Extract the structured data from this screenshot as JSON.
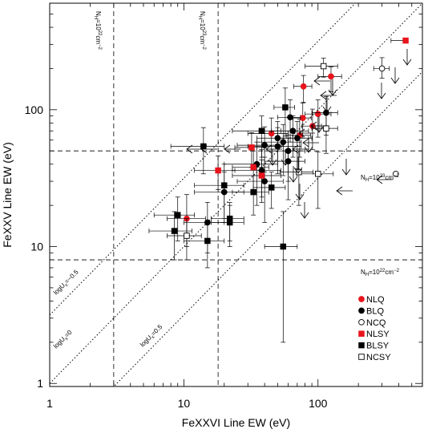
{
  "chart_data": {
    "type": "scatter",
    "xscale": "log",
    "yscale": "log",
    "xlim": [
      1,
      600
    ],
    "ylim": [
      0.95,
      600
    ],
    "xlabel": "FeXXVI Line EW (eV)",
    "ylabel": "FeXXV Line EW (eV)",
    "xticks": [
      1,
      10,
      100
    ],
    "yticks": [
      1,
      10,
      100
    ],
    "xtick_labels": [
      "1",
      "10",
      "100"
    ],
    "ytick_labels": [
      "1",
      "10",
      "100"
    ],
    "legend_position": "lower-right",
    "grid": false,
    "reference_lines": {
      "vertical": [
        {
          "x": 3,
          "style": "dashed",
          "label": "N_H=10^22 cm^-2"
        },
        {
          "x": 18,
          "style": "dashed",
          "label": "N_H=10^23 cm^-2"
        }
      ],
      "horizontal": [
        {
          "y": 50,
          "style": "dashed",
          "label": "N_H=10^23 cm^-2"
        },
        {
          "y": 8,
          "style": "dashed",
          "label": "N_H=10^22 cm^-2"
        }
      ],
      "diagonal": [
        {
          "log_ratio": 0.5,
          "style": "dotted",
          "label": "logU_x=-0.5"
        },
        {
          "log_ratio": 0.0,
          "style": "dotted",
          "label": "logU_x=0"
        },
        {
          "log_ratio": -0.5,
          "style": "dotted",
          "label": "logU_x=0.5"
        }
      ]
    },
    "annotations": {
      "vline_22": "N<tspan font-size=\"6\" dy=\"2\">H</tspan><tspan dy=\"-2\">=10</tspan><tspan font-size=\"6\" dy=\"-3\">22</tspan><tspan dy=\"3\">cm</tspan><tspan font-size=\"6\" dy=\"-3\">−2</tspan>",
      "vline_23": "N<tspan font-size=\"6\" dy=\"2\">H</tspan><tspan dy=\"-2\">=10</tspan><tspan font-size=\"6\" dy=\"-3\">23</tspan><tspan dy=\"3\">cm</tspan><tspan font-size=\"6\" dy=\"-3\">−2</tspan>",
      "hline_23": "N<tspan font-size=\"6\" dy=\"2\">H</tspan><tspan dy=\"-2\">=10</tspan><tspan font-size=\"6\" dy=\"-3\">23</tspan><tspan dy=\"3\">cm</tspan><tspan font-size=\"6\" dy=\"-3\">−2</tspan>",
      "hline_22": "N<tspan font-size=\"6\" dy=\"2\">H</tspan><tspan dy=\"-2\">=10</tspan><tspan font-size=\"6\" dy=\"-3\">22</tspan><tspan dy=\"3\">cm</tspan><tspan font-size=\"6\" dy=\"-3\">−2</tspan>",
      "diag_m05": "logU<tspan font-size=\"6\" dy=\"2\">x</tspan><tspan dy=\"-2\">=−0.5</tspan>",
      "diag_0": "logU<tspan font-size=\"6\" dy=\"2\">x</tspan><tspan dy=\"-2\">=0</tspan>",
      "diag_p05": "logU<tspan font-size=\"6\" dy=\"2\">x</tspan><tspan dy=\"-2\">=0.5</tspan>"
    },
    "legend": [
      {
        "label": "NLQ",
        "marker": "circle",
        "filled": true,
        "color": "#e8141c"
      },
      {
        "label": "BLQ",
        "marker": "circle",
        "filled": true,
        "color": "#000000"
      },
      {
        "label": "NCQ",
        "marker": "circle",
        "filled": false,
        "color": "#000000"
      },
      {
        "label": "NLSY",
        "marker": "square",
        "filled": true,
        "color": "#e8141c"
      },
      {
        "label": "BLSY",
        "marker": "square",
        "filled": true,
        "color": "#000000"
      },
      {
        "label": "NCSY",
        "marker": "square",
        "filled": false,
        "color": "#000000"
      }
    ],
    "series": [
      {
        "name": "NLQ",
        "marker": "circle",
        "filled": true,
        "color": "#e8141c",
        "points": [
          {
            "x": 78,
            "y": 148,
            "xerr": [
              12,
              12
            ],
            "yerr": [
              35,
              30
            ]
          },
          {
            "x": 125,
            "y": 175,
            "xerr": [
              25,
              25
            ],
            "yerr": [
              40,
              30
            ]
          },
          {
            "x": 100,
            "y": 93,
            "xerr": [
              20,
              25
            ],
            "yerr": [
              30,
              25
            ]
          },
          {
            "x": 77,
            "y": 87,
            "xerr": [
              12,
              12
            ],
            "yerr": [
              25,
              25
            ]
          },
          {
            "x": 91,
            "y": 76,
            "xerr": [
              15,
              15
            ],
            "yerr": [
              25,
              25
            ]
          },
          {
            "x": 73,
            "y": 65,
            "xerr": [
              15,
              15
            ],
            "yerr": [
              20,
              20
            ]
          },
          {
            "x": 45,
            "y": 67,
            "xerr": [
              15,
              15
            ],
            "yerr": [
              25,
              20
            ]
          },
          {
            "x": 10.5,
            "y": 16,
            "xerr": [
              3,
              4
            ],
            "yerr": [
              6,
              8
            ]
          }
        ]
      },
      {
        "name": "BLQ",
        "marker": "circle",
        "filled": true,
        "color": "#000000",
        "points": [
          {
            "x": 115,
            "y": 95,
            "xerr": [
              25,
              25
            ],
            "yerr": [
              30,
              30
            ]
          },
          {
            "x": 70,
            "y": 62,
            "xerr": [
              20,
              20
            ],
            "yerr": [
              25,
              20
            ]
          },
          {
            "x": 65,
            "y": 70,
            "xerr": [
              20,
              20
            ],
            "yerr": [
              25,
              20
            ]
          },
          {
            "x": 55,
            "y": 58,
            "xerr": [
              20,
              20
            ],
            "yerr": [
              25,
              20
            ]
          },
          {
            "x": 60,
            "y": 50,
            "xerr": [
              20,
              20
            ],
            "yerr": [
              20,
              20
            ]
          },
          {
            "x": 62,
            "y": 88,
            "xerr": [
              12,
              12
            ],
            "yerr": [
              30,
              30
            ]
          },
          {
            "x": 50,
            "y": 54,
            "xerr": [
              20,
              25
            ],
            "yerr": [
              20,
              20
            ]
          },
          {
            "x": 60,
            "y": 42,
            "xerr": [
              20,
              20
            ],
            "yerr": [
              20,
              20
            ]
          },
          {
            "x": 40,
            "y": 55,
            "xerr": [
              15,
              15
            ],
            "yerr": [
              20,
              20
            ]
          },
          {
            "x": 35,
            "y": 40,
            "xerr": [
              15,
              15
            ],
            "yerr": [
              20,
              18
            ]
          },
          {
            "x": 38,
            "y": 36,
            "xerr": [
              15,
              15
            ],
            "yerr": [
              15,
              15
            ]
          },
          {
            "x": 20,
            "y": 25,
            "xerr": [
              8,
              8
            ],
            "yerr": [
              10,
              10
            ]
          },
          {
            "x": 15,
            "y": 15,
            "xerr": [
              5,
              5
            ],
            "yerr": [
              6,
              6
            ]
          },
          {
            "x": 40,
            "y": 30,
            "xerr": [
              15,
              15
            ],
            "yerr": [
              15,
              15
            ]
          },
          {
            "x": 50,
            "y": 62,
            "xerr": [
              15,
              15
            ],
            "yerr": [
              20,
              20
            ]
          }
        ]
      },
      {
        "name": "NCQ",
        "marker": "circle",
        "filled": false,
        "color": "#000000",
        "points": [
          {
            "x": 300,
            "y": 200,
            "xerr": [
              40,
              40
            ],
            "yerr": [
              30,
              40
            ]
          },
          {
            "x": 380,
            "y": 34,
            "xerr": [
              0,
              0
            ],
            "yerr": [
              0,
              0
            ]
          }
        ]
      },
      {
        "name": "NLSY",
        "marker": "square",
        "filled": true,
        "color": "#e8141c",
        "points": [
          {
            "x": 450,
            "y": 320,
            "xerr": [
              100,
              0
            ],
            "yerr": [
              0,
              0
            ]
          },
          {
            "x": 38,
            "y": 33,
            "xerr": [
              15,
              15
            ],
            "yerr": [
              10,
              10
            ]
          },
          {
            "x": 33,
            "y": 38,
            "xerr": [
              10,
              10
            ],
            "yerr": [
              12,
              12
            ]
          },
          {
            "x": 18,
            "y": 36,
            "xerr": [
              6,
              6
            ],
            "yerr": [
              10,
              10
            ]
          },
          {
            "x": 32,
            "y": 53,
            "xerr": [
              8,
              8
            ],
            "yerr": [
              15,
              15
            ]
          }
        ]
      },
      {
        "name": "BLSY",
        "marker": "square",
        "filled": true,
        "color": "#000000",
        "points": [
          {
            "x": 57,
            "y": 104,
            "xerr": [
              10,
              10
            ],
            "yerr": [
              40,
              40
            ]
          },
          {
            "x": 38,
            "y": 70,
            "xerr": [
              15,
              15
            ],
            "yerr": [
              25,
              20
            ]
          },
          {
            "x": 14,
            "y": 54,
            "xerr": [
              6,
              6
            ],
            "yerr": [
              20,
              20
            ]
          },
          {
            "x": 20,
            "y": 28,
            "xerr": [
              8,
              8
            ],
            "yerr": [
              12,
              12
            ]
          },
          {
            "x": 9,
            "y": 17,
            "xerr": [
              3,
              3
            ],
            "yerr": [
              6,
              6
            ]
          },
          {
            "x": 8.5,
            "y": 13,
            "xerr": [
              3,
              3
            ],
            "yerr": [
              5,
              5
            ]
          },
          {
            "x": 22,
            "y": 16,
            "xerr": [
              6,
              6
            ],
            "yerr": [
              5,
              5
            ]
          },
          {
            "x": 22,
            "y": 15,
            "xerr": [
              6,
              6
            ],
            "yerr": [
              5,
              5
            ]
          },
          {
            "x": 15,
            "y": 11,
            "xerr": [
              5,
              5
            ],
            "yerr": [
              4,
              4
            ]
          },
          {
            "x": 33,
            "y": 25,
            "xerr": [
              10,
              10
            ],
            "yerr": [
              8,
              8
            ]
          },
          {
            "x": 45,
            "y": 27,
            "xerr": [
              12,
              12
            ],
            "yerr": [
              8,
              8
            ]
          },
          {
            "x": 55,
            "y": 10,
            "xerr": [
              15,
              15
            ],
            "yerr": [
              8,
              8
            ]
          }
        ]
      },
      {
        "name": "NCSY",
        "marker": "square",
        "filled": false,
        "color": "#000000",
        "points": [
          {
            "x": 110,
            "y": 208,
            "xerr": [
              30,
              30
            ],
            "yerr": [
              35,
              30
            ]
          },
          {
            "x": 115,
            "y": 73,
            "xerr": [
              25,
              25
            ],
            "yerr": [
              25,
              25
            ]
          },
          {
            "x": 100,
            "y": 34,
            "xerr": [
              30,
              30
            ],
            "yerr": [
              15,
              15
            ]
          },
          {
            "x": 72,
            "y": 35,
            "xerr": [
              20,
              20
            ],
            "yerr": [
              15,
              15
            ]
          },
          {
            "x": 10.5,
            "y": 12,
            "xerr": [
              3,
              3
            ],
            "yerr": [
              4,
              4
            ]
          }
        ]
      }
    ]
  }
}
